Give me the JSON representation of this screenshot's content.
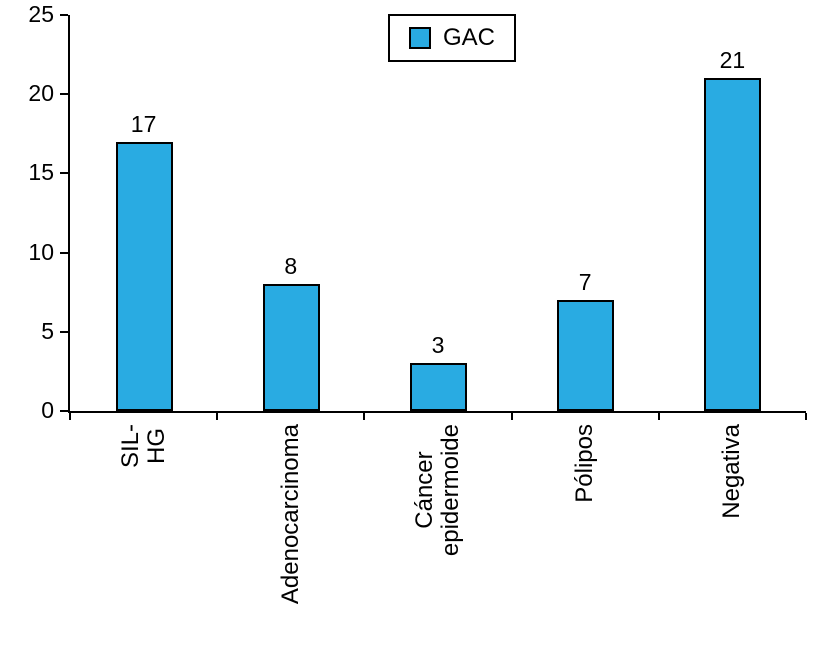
{
  "chart_data": {
    "type": "bar",
    "title": "",
    "xlabel": "",
    "ylabel": "",
    "categories": [
      "SIL-HG",
      "Adenocarcinoma",
      "Cáncer\nepidermoide",
      "Pólipos",
      "Negativa"
    ],
    "values": [
      17,
      8,
      3,
      7,
      21
    ],
    "value_labels": [
      "17",
      "8",
      "3",
      "7",
      "21"
    ],
    "yticks": [
      "0",
      "5",
      "10",
      "15",
      "20",
      "25"
    ],
    "ylim": [
      0,
      25
    ],
    "grid": false,
    "legend": {
      "position": "top-center",
      "entries": [
        {
          "label": "GAC",
          "color": "#29abe2"
        }
      ]
    },
    "colors": {
      "bar_fill": "#29abe2",
      "bar_border": "#000000",
      "axis": "#000000",
      "background": "#ffffff"
    }
  }
}
